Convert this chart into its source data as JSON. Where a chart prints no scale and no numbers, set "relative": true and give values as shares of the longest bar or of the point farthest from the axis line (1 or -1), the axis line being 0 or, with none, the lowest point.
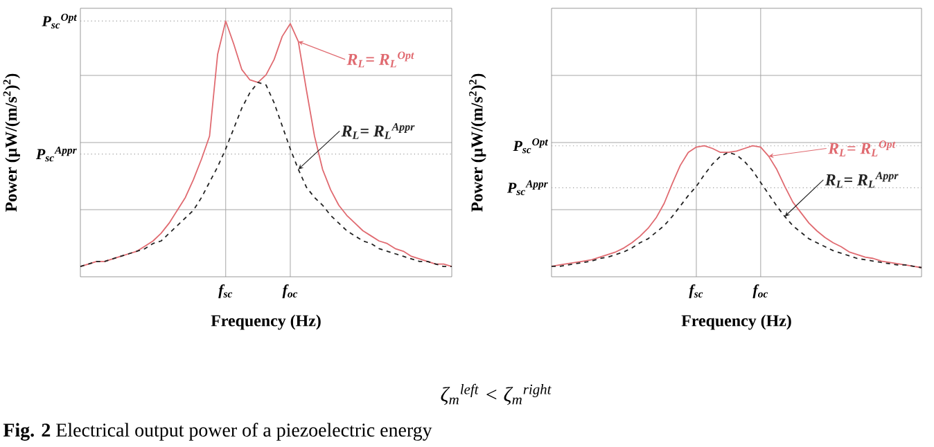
{
  "chart_data": [
    {
      "type": "line",
      "marker": "none",
      "grid": true,
      "relative": true,
      "xlabel": "Frequency (Hz)",
      "ylabel": "Power (μW/(m/s$^{2}$)$^{2}$)",
      "categories": [
        null,
        null,
        null,
        null,
        null,
        null,
        null,
        null,
        null,
        null,
        null,
        null,
        null,
        null,
        null,
        null,
        null,
        null,
        "f$_{sc}$",
        null,
        null,
        null,
        null,
        null,
        null,
        null,
        "f$_{oc}$",
        null,
        null,
        null,
        null,
        null,
        null,
        null,
        null,
        null,
        null,
        null,
        null,
        null,
        null,
        null,
        null,
        null,
        null,
        null,
        null
      ],
      "series": [
        {
          "name": "R$_{L}$= R$_{L}$$^{Opt}$",
          "color": "#e06a70",
          "line_style": "solid",
          "values": [
            0.04,
            0.05,
            0.06,
            0.06,
            0.07,
            0.08,
            0.09,
            0.1,
            0.12,
            0.14,
            0.17,
            0.21,
            0.26,
            0.31,
            0.38,
            0.46,
            0.55,
            0.87,
            1,
            0.91,
            0.81,
            0.77,
            0.76,
            0.79,
            0.85,
            0.94,
            0.99,
            0.92,
            0.73,
            0.55,
            0.42,
            0.34,
            0.28,
            0.24,
            0.21,
            0.18,
            0.16,
            0.14,
            0.13,
            0.11,
            0.1,
            0.08,
            0.07,
            0.06,
            0.05,
            0.05,
            0.04
          ]
        },
        {
          "name": "R$_{L}$= R$_{L}$$^{Appr}$",
          "color": "#222222",
          "line_style": "dashed",
          "values": [
            0.04,
            0.05,
            0.06,
            0.06,
            0.07,
            0.08,
            0.09,
            0.1,
            0.11,
            0.13,
            0.14,
            0.17,
            0.2,
            0.23,
            0.26,
            0.31,
            0.37,
            0.43,
            0.5,
            0.58,
            0.66,
            0.72,
            0.76,
            0.75,
            0.68,
            0.59,
            0.5,
            0.42,
            0.35,
            0.31,
            0.28,
            0.24,
            0.21,
            0.18,
            0.16,
            0.14,
            0.13,
            0.11,
            0.1,
            0.09,
            0.08,
            0.07,
            0.06,
            0.06,
            0.05,
            0.04,
            0.04
          ]
        }
      ],
      "ref_lines": [
        {
          "axis": "y",
          "value": 1,
          "label": "P$_{sc}$$^{Opt}$",
          "line_style": "dotted",
          "color": "#999999"
        },
        {
          "axis": "y",
          "value": 0.48,
          "label": "P$_{sc}$$^{Appr}$",
          "line_style": "dotted",
          "color": "#999999"
        }
      ],
      "annotations": [
        "ζ$_{m}$$^{left}$ < ζ$_{m}$$^{right}$",
        "**Fig. 2** Electrical output power of a piezoelectric energy"
      ]
    },
    {
      "type": "line",
      "marker": "none",
      "grid": true,
      "relative": true,
      "xlabel": "Frequency (Hz)",
      "ylabel": "Power (μW/(m/s$^{2}$)$^{2}$)",
      "categories": [
        null,
        null,
        null,
        null,
        null,
        null,
        null,
        null,
        null,
        null,
        null,
        null,
        null,
        null,
        null,
        null,
        null,
        null,
        "f$_{sc}$",
        null,
        null,
        null,
        null,
        null,
        null,
        null,
        "f$_{oc}$",
        null,
        null,
        null,
        null,
        null,
        null,
        null,
        null,
        null,
        null,
        null,
        null,
        null,
        null,
        null,
        null,
        null,
        null,
        null,
        null
      ],
      "series": [
        {
          "name": "R$_{L}$= R$_{L}$$^{Opt}$",
          "color": "#e06a70",
          "line_style": "solid",
          "values": [
            0.08,
            0.09,
            0.1,
            0.11,
            0.12,
            0.13,
            0.15,
            0.17,
            0.19,
            0.22,
            0.26,
            0.31,
            0.37,
            0.45,
            0.56,
            0.71,
            0.85,
            0.95,
            0.99,
            1,
            0.98,
            0.95,
            0.95,
            0.96,
            0.98,
            1,
            0.99,
            0.92,
            0.82,
            0.69,
            0.57,
            0.49,
            0.41,
            0.35,
            0.3,
            0.26,
            0.23,
            0.19,
            0.17,
            0.15,
            0.14,
            0.12,
            0.11,
            0.1,
            0.09,
            0.08,
            0.07
          ]
        },
        {
          "name": "R$_{L}$= R$_{L}$$^{Appr}$",
          "color": "#222222",
          "line_style": "dashed",
          "values": [
            0.08,
            0.08,
            0.09,
            0.1,
            0.11,
            0.12,
            0.14,
            0.15,
            0.17,
            0.19,
            0.22,
            0.26,
            0.29,
            0.34,
            0.39,
            0.46,
            0.54,
            0.62,
            0.69,
            0.78,
            0.86,
            0.92,
            0.95,
            0.93,
            0.88,
            0.81,
            0.72,
            0.63,
            0.54,
            0.46,
            0.39,
            0.34,
            0.29,
            0.26,
            0.23,
            0.2,
            0.18,
            0.16,
            0.14,
            0.13,
            0.12,
            0.11,
            0.1,
            0.09,
            0.09,
            0.08,
            0.07
          ]
        }
      ],
      "ref_lines": [
        {
          "axis": "y",
          "value": 1,
          "label": "P$_{sc}$$^{Opt}$",
          "line_style": "dotted",
          "color": "#999999"
        },
        {
          "axis": "y",
          "value": 0.68,
          "label": "P$_{sc}$$^{Appr}$",
          "line_style": "dotted",
          "color": "#999999"
        }
      ]
    }
  ]
}
